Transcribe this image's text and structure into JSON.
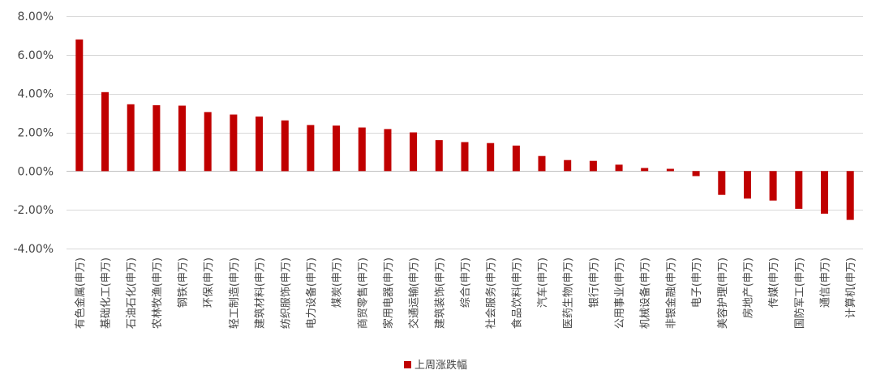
{
  "chart_data": {
    "type": "bar",
    "title": "",
    "xlabel": "",
    "ylabel": "",
    "ylim": [
      -4,
      8
    ],
    "y_ticks": [
      "8.00%",
      "6.00%",
      "4.00%",
      "2.00%",
      "0.00%",
      "-2.00%",
      "-4.00%"
    ],
    "y_tick_values": [
      8,
      6,
      4,
      2,
      0,
      -2,
      -4
    ],
    "grid": true,
    "legend_position": "bottom",
    "bar_color": "#c00000",
    "categories": [
      "有色金属(申万)",
      "基础化工(申万)",
      "石油石化(申万)",
      "农林牧渔(申万)",
      "钢铁(申万)",
      "环保(申万)",
      "轻工制造(申万)",
      "建筑材料(申万)",
      "纺织服饰(申万)",
      "电力设备(申万)",
      "煤炭(申万)",
      "商贸零售(申万)",
      "家用电器(申万)",
      "交通运输(申万)",
      "建筑装饰(申万)",
      "综合(申万)",
      "社会服务(申万)",
      "食品饮料(申万)",
      "汽车(申万)",
      "医药生物(申万)",
      "银行(申万)",
      "公用事业(申万)",
      "机械设备(申万)",
      "非银金融(申万)",
      "电子(申万)",
      "美容护理(申万)",
      "房地产(申万)",
      "传媒(申万)",
      "国防军工(申万)",
      "通信(申万)",
      "计算机(申万)"
    ],
    "series": [
      {
        "name": "上周涨跌幅",
        "values": [
          6.8,
          4.08,
          3.45,
          3.4,
          3.38,
          3.05,
          2.92,
          2.82,
          2.62,
          2.38,
          2.35,
          2.25,
          2.17,
          2.0,
          1.6,
          1.5,
          1.45,
          1.32,
          0.78,
          0.57,
          0.53,
          0.33,
          0.16,
          0.12,
          -0.26,
          -1.23,
          -1.42,
          -1.52,
          -1.95,
          -2.2,
          -2.52
        ]
      }
    ]
  }
}
